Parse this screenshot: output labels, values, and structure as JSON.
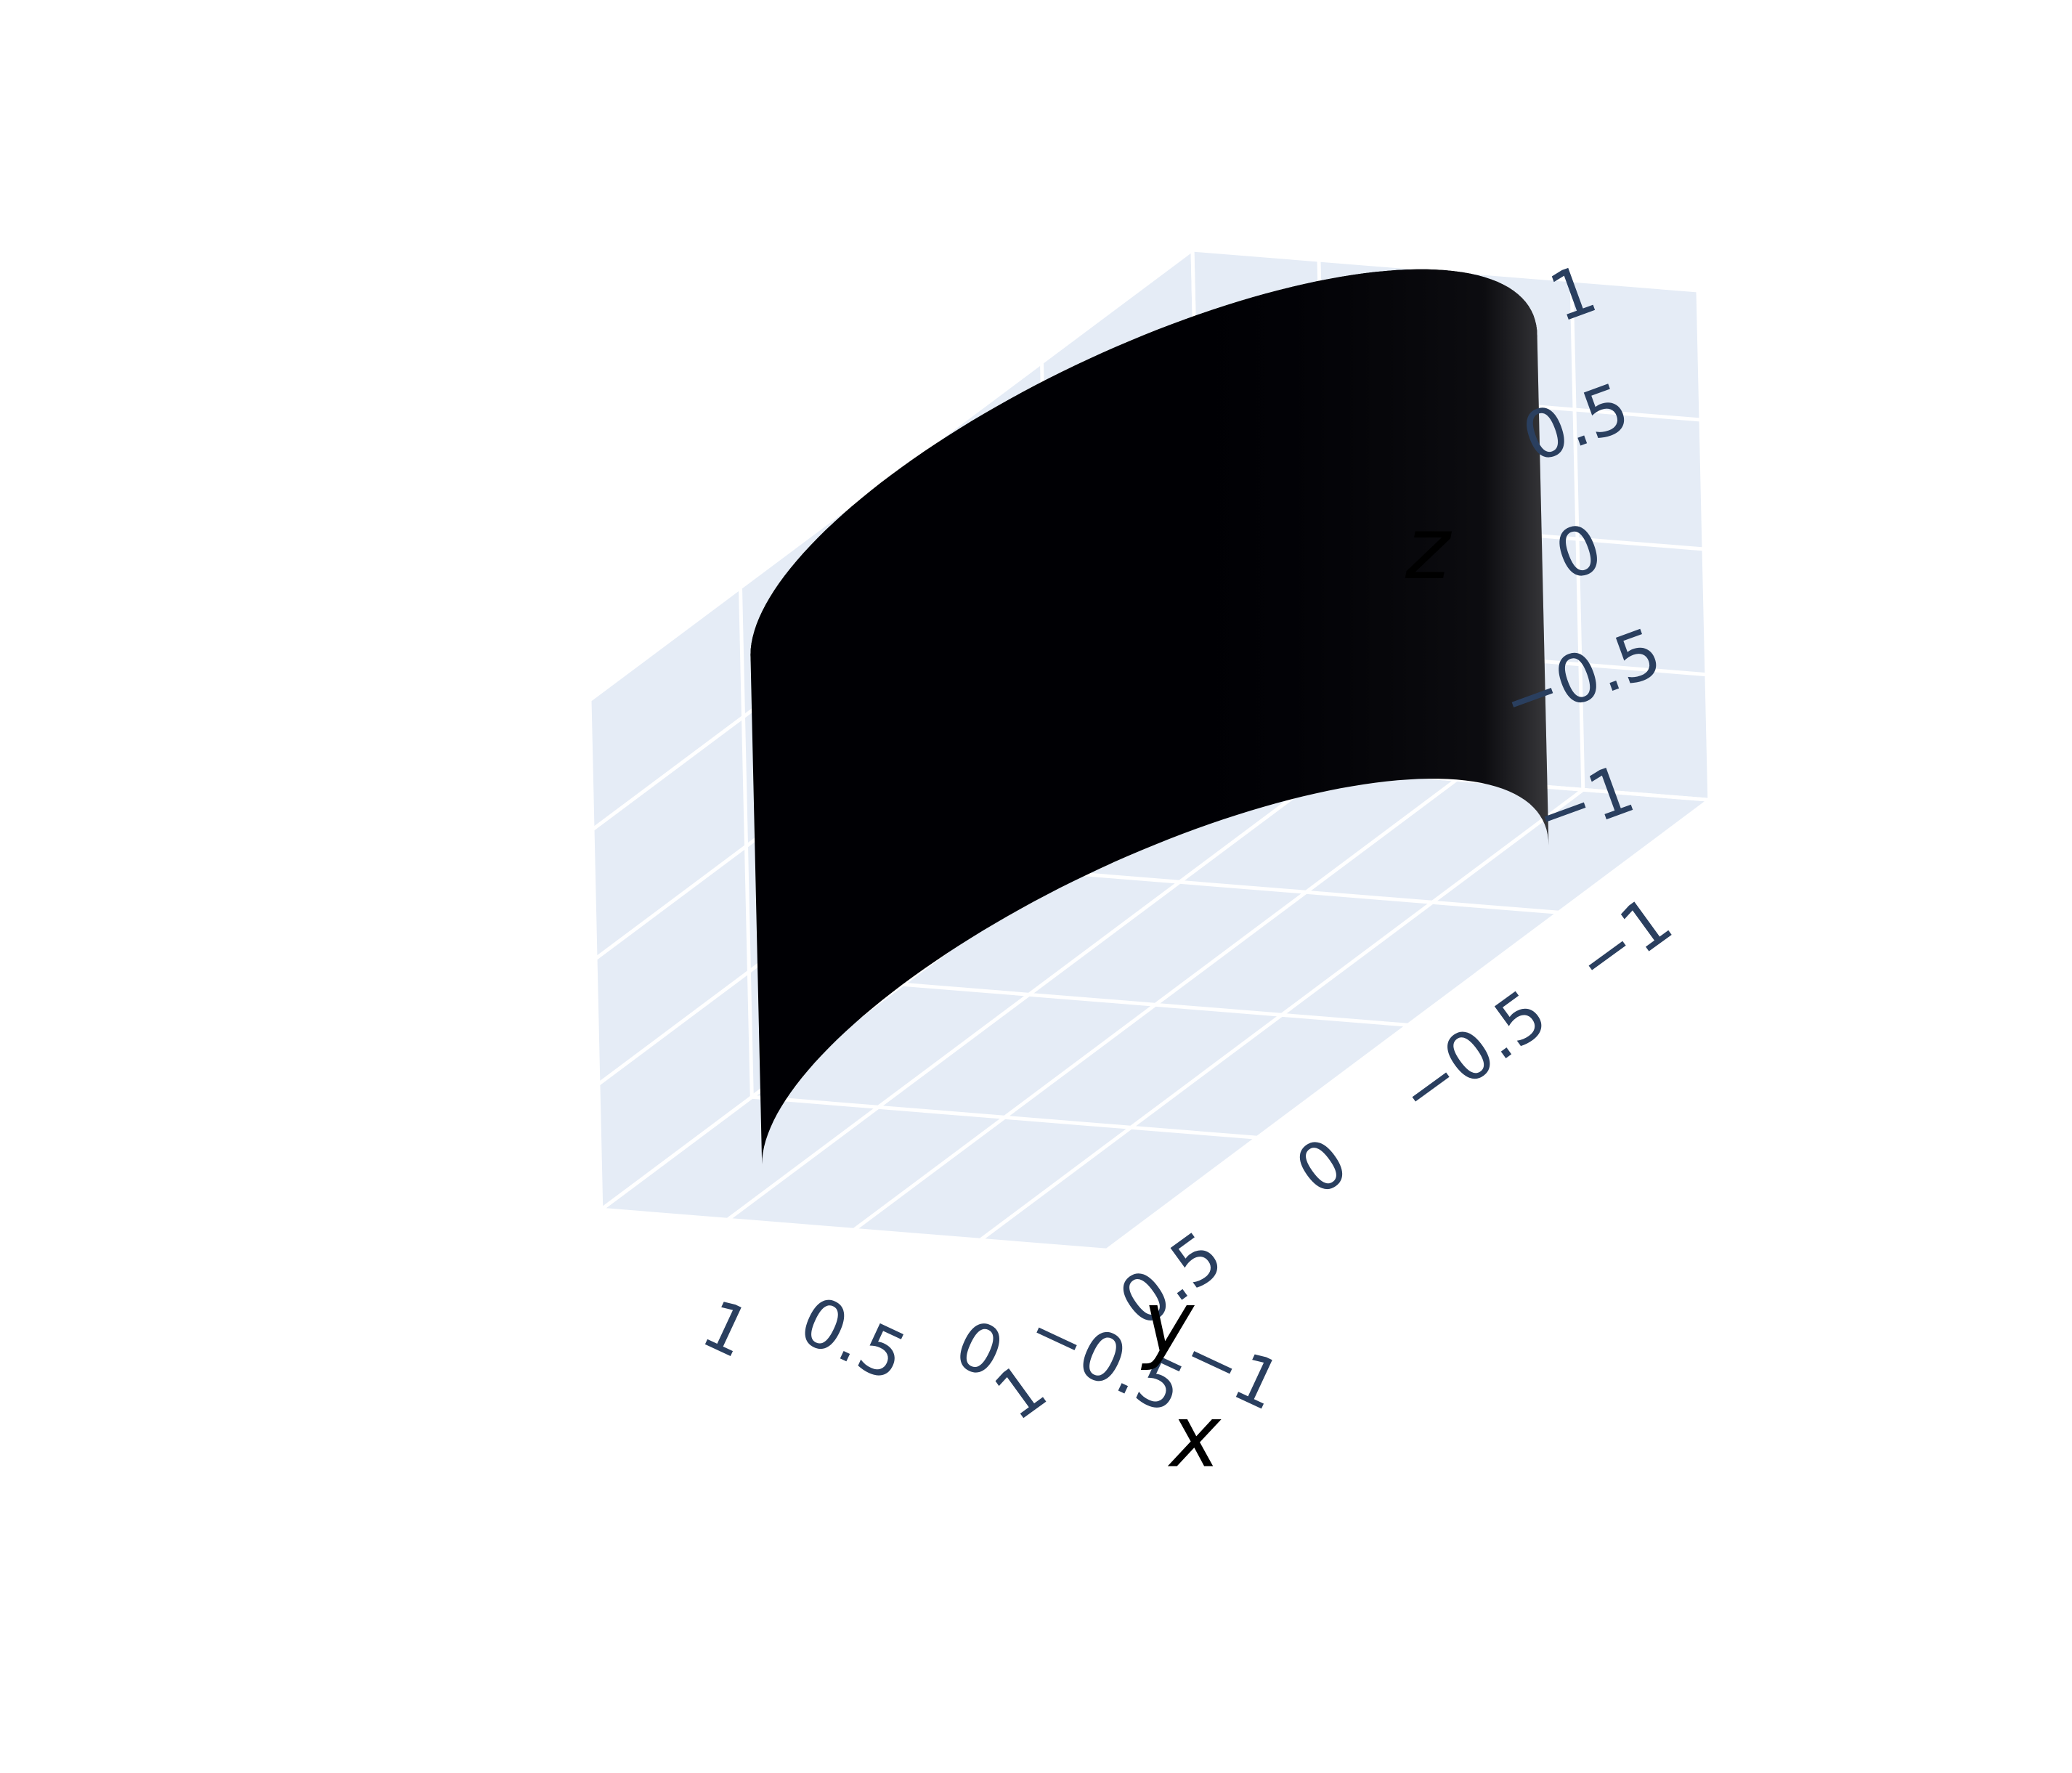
{
  "chart_data": {
    "type": "surface",
    "surface": "cylinder",
    "radius": 1,
    "z_range": [
      -1,
      1
    ],
    "colorscale": "magma",
    "colorscale_stops": [
      "#000004",
      "#3b0f70",
      "#8c2981",
      "#de4968",
      "#fe9f6d",
      "#fcfdbf"
    ],
    "scene_background": "#e5ecf6",
    "grid_color": "#ffffff",
    "tick_color": "#2a3f5f",
    "xaxis": {
      "title": "x",
      "range": [
        -1,
        1
      ],
      "ticks": [
        -1,
        -0.5,
        0,
        0.5,
        1
      ],
      "tick_labels": [
        "−1",
        "−0.5",
        "0",
        "0.5",
        "1"
      ]
    },
    "yaxis": {
      "title": "y",
      "range": [
        -1,
        1
      ],
      "ticks": [
        -1,
        -0.5,
        0,
        0.5,
        1
      ],
      "tick_labels": [
        "−1",
        "−0.5",
        "0",
        "0.5",
        "1"
      ]
    },
    "zaxis": {
      "title": "z",
      "range": [
        -1,
        1
      ],
      "ticks": [
        -1,
        -0.5,
        0,
        0.5,
        1
      ],
      "tick_labels": [
        "−1",
        "−0.5",
        "0",
        "0.5",
        "1"
      ]
    },
    "grid": true,
    "legend": "none"
  }
}
